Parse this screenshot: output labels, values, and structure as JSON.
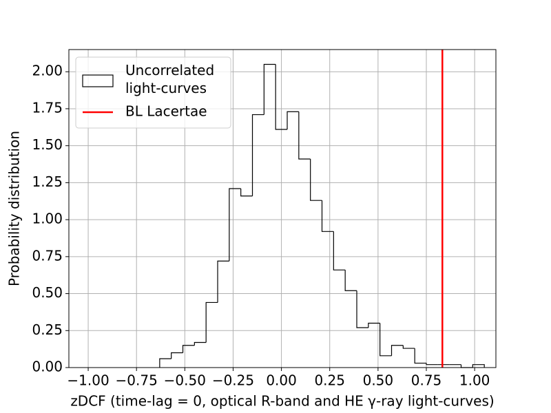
{
  "chart_data": {
    "type": "histogram",
    "xlabel": "zDCF (time-lag = 0, optical R-band and HE γ-ray light-curves)",
    "ylabel": "Probability distribution",
    "bins": [
      -0.63,
      -0.57,
      -0.51,
      -0.45,
      -0.39,
      -0.33,
      -0.27,
      -0.21,
      -0.15,
      -0.09,
      -0.03,
      0.03,
      0.09,
      0.15,
      0.21,
      0.27,
      0.33,
      0.39,
      0.45,
      0.51,
      0.57,
      0.63,
      0.69,
      0.75,
      0.81,
      0.87,
      0.93,
      0.99,
      1.05
    ],
    "values": [
      0.06,
      0.1,
      0.15,
      0.17,
      0.44,
      0.72,
      1.21,
      1.16,
      1.71,
      2.05,
      1.61,
      1.73,
      1.41,
      1.13,
      0.92,
      0.66,
      0.52,
      0.27,
      0.3,
      0.08,
      0.15,
      0.13,
      0.03,
      0.02,
      0.02,
      0.02,
      0,
      0.02
    ],
    "name": "Uncorrelated\nlight-curves",
    "color": "#000000",
    "vline": {
      "name": "BL Lacertae",
      "value": 0.833,
      "color": "#ff0000"
    },
    "xlim": [
      -1.1,
      1.11
    ],
    "ylim": [
      0,
      2.15
    ],
    "xticks": [
      {
        "value": -1,
        "label": "−1.00"
      },
      {
        "value": -0.75,
        "label": "−0.75"
      },
      {
        "value": -0.5,
        "label": "−0.50"
      },
      {
        "value": -0.25,
        "label": "−0.25"
      },
      {
        "value": 0,
        "label": "0.00"
      },
      {
        "value": 0.25,
        "label": "0.25"
      },
      {
        "value": 0.5,
        "label": "0.50"
      },
      {
        "value": 0.75,
        "label": "0.75"
      },
      {
        "value": 1,
        "label": "1.00"
      }
    ],
    "yticks": [
      {
        "value": 0,
        "label": "0.00"
      },
      {
        "value": 0.25,
        "label": "0.25"
      },
      {
        "value": 0.5,
        "label": "0.50"
      },
      {
        "value": 0.75,
        "label": "0.75"
      },
      {
        "value": 1,
        "label": "1.00"
      },
      {
        "value": 1.25,
        "label": "1.25"
      },
      {
        "value": 1.5,
        "label": "1.50"
      },
      {
        "value": 1.75,
        "label": "1.75"
      },
      {
        "value": 2,
        "label": "2.00"
      }
    ],
    "grid": true,
    "legend": "upper left"
  }
}
